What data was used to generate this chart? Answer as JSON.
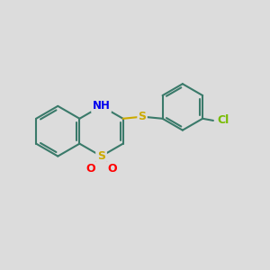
{
  "background_color": "#dcdcdc",
  "bond_color": "#3a7a6a",
  "bond_width": 1.5,
  "sulfone_S_color": "#ccaa00",
  "sulfone_O_color": "#ff0000",
  "N_color": "#0000ee",
  "Cl_color": "#77bb00",
  "S_thio_color": "#ccaa00",
  "fig_width": 3.0,
  "fig_height": 3.0,
  "dpi": 100,
  "xlim": [
    0,
    14
  ],
  "ylim": [
    0,
    14
  ]
}
